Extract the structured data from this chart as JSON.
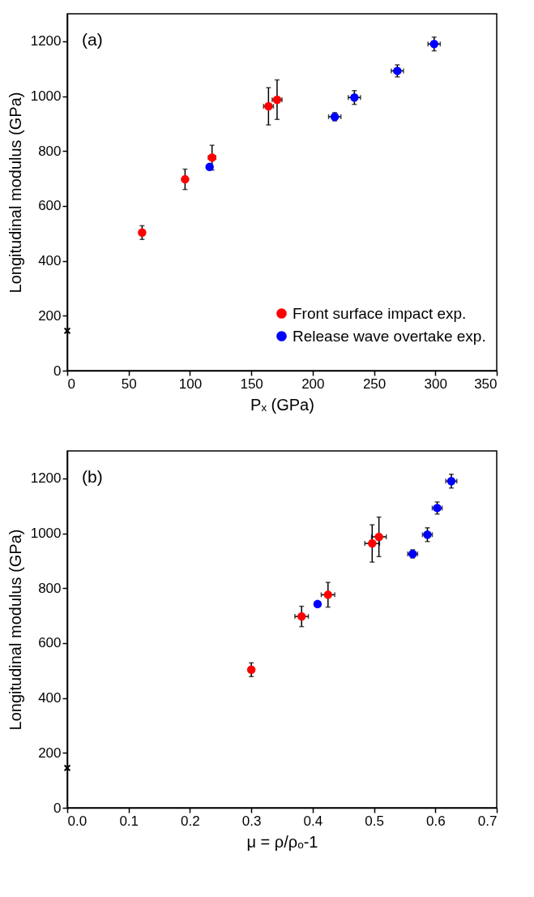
{
  "chart_data": [
    {
      "type": "scatter",
      "xlabel": "Pₓ (GPa)",
      "ylabel": "Longitudinal modulus (GPa)",
      "annotations": [
        "(a)"
      ],
      "xlim": [
        0,
        350
      ],
      "xticks": [
        0,
        50,
        100,
        150,
        200,
        250,
        300,
        350
      ],
      "ylim": [
        0,
        1300
      ],
      "yticks": [
        0,
        200,
        400,
        600,
        800,
        1000,
        1200
      ],
      "grid": false,
      "legend": "bottom right",
      "series": [
        {
          "name": "Front surface impact exp.",
          "color": "#ff0000",
          "marker": "circle",
          "x": [
            61,
            96,
            118,
            164,
            171
          ],
          "values": [
            503,
            697,
            776,
            963,
            987
          ],
          "errors": [
            25,
            37,
            45,
            68,
            72
          ],
          "xerrors": [
            null,
            null,
            3,
            4,
            4
          ]
        },
        {
          "name": "Release wave overtake exp.",
          "color": "#0000ff",
          "marker": "circle",
          "x": [
            116,
            218,
            234,
            269,
            299
          ],
          "values": [
            742,
            925,
            995,
            1092,
            1190
          ],
          "errors": [
            null,
            15,
            25,
            22,
            25
          ],
          "xerrors": [
            null,
            5,
            5,
            5,
            5
          ]
        },
        {
          "color": "#000000",
          "marker": "cross",
          "x": [
            0
          ],
          "values": [
            145
          ]
        }
      ]
    },
    {
      "type": "scatter",
      "xlabel": "μ = ρ/ρₒ-1",
      "ylabel": "Longitudinal modulus (GPa)",
      "annotations": [
        "(b)"
      ],
      "xlim": [
        0,
        0.7
      ],
      "xticks": [
        {
          "value": 0,
          "label": "0.0"
        },
        0.1,
        0.2,
        0.3,
        0.4,
        0.5,
        0.6,
        0.7
      ],
      "ylim": [
        0,
        1300
      ],
      "yticks": [
        0,
        200,
        400,
        600,
        800,
        1000,
        1200
      ],
      "grid": false,
      "legend": false,
      "series": [
        {
          "color": "#ff0000",
          "marker": "circle",
          "x": [
            0.3,
            0.382,
            0.425,
            0.497,
            0.508
          ],
          "values": [
            503,
            697,
            776,
            963,
            987
          ],
          "errors": [
            25,
            37,
            45,
            68,
            72
          ],
          "xerrors": [
            null,
            0.011,
            0.011,
            0.012,
            0.012
          ]
        },
        {
          "color": "#0000ff",
          "marker": "circle",
          "x": [
            0.408,
            0.563,
            0.587,
            0.603,
            0.626
          ],
          "values": [
            742,
            925,
            995,
            1092,
            1190
          ],
          "errors": [
            null,
            15,
            25,
            22,
            25
          ],
          "xerrors": [
            null,
            0.008,
            0.008,
            0.008,
            0.009
          ]
        },
        {
          "color": "#000000",
          "marker": "cross",
          "x": [
            0
          ],
          "values": [
            145
          ]
        }
      ]
    }
  ]
}
